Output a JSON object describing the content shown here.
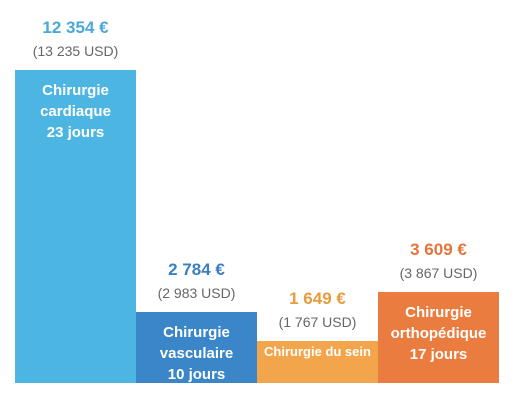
{
  "chart_data": {
    "type": "bar",
    "categories": [
      "Chirurgie cardiaque",
      "Chirurgie vasculaire",
      "Chirurgie du sein",
      "Chirurgie orthopédique"
    ],
    "days_labels": [
      "23 jours",
      "10 jours",
      null,
      "17 jours"
    ],
    "values": [
      12354,
      2784,
      1649,
      3609
    ],
    "value_labels": [
      "12 354 €",
      "2 784 €",
      "1 649 €",
      "3 609 €"
    ],
    "usd_labels": [
      "(13 235 USD)",
      "(2 983 USD)",
      "(1 767 USD)",
      "(3 867 USD)"
    ],
    "colors": [
      "#4db5e2",
      "#3a86c8",
      "#f2a54b",
      "#ea7c3f"
    ],
    "label_colors": [
      "#4aa8d8",
      "#3a7fc0",
      "#e99a3a",
      "#e5743a"
    ]
  }
}
